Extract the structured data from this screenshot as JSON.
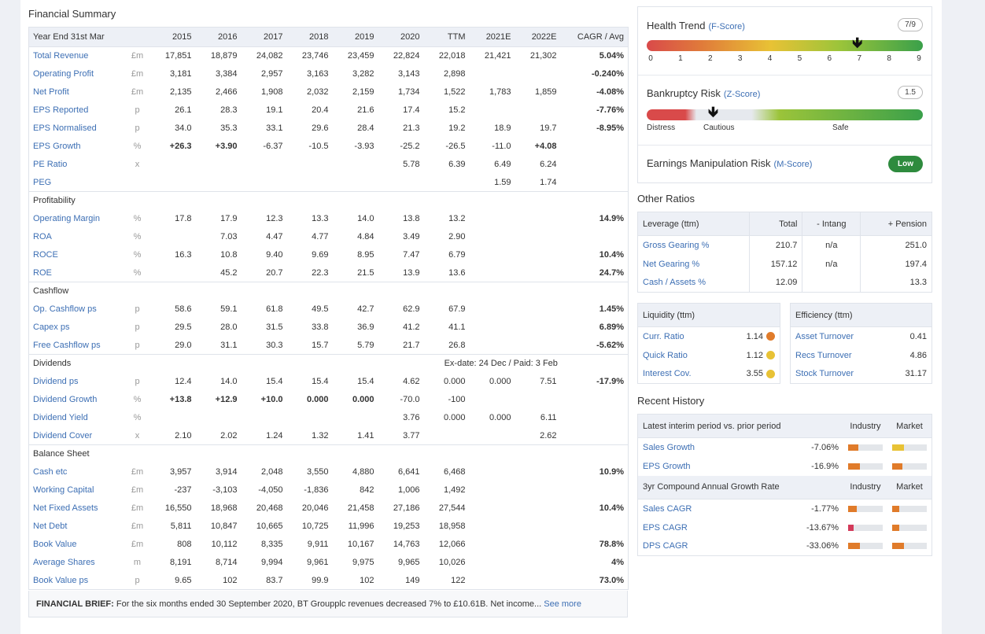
{
  "financial_summary": {
    "title": "Financial Summary",
    "header": [
      "Year End 31st Mar",
      "",
      "2015",
      "2016",
      "2017",
      "2018",
      "2019",
      "2020",
      "TTM",
      "2021E",
      "2022E",
      "CAGR / Avg"
    ],
    "rows": [
      {
        "type": "row",
        "label": "Total Revenue",
        "unit": "£m",
        "vals": [
          "17,851",
          "18,879",
          "24,082",
          "23,746",
          "23,459",
          "22,824",
          "22,018",
          "21,421",
          "21,302"
        ],
        "cagr": "5.04%"
      },
      {
        "type": "row",
        "label": "Operating Profit",
        "unit": "£m",
        "vals": [
          "3,181",
          "3,384",
          "2,957",
          "3,163",
          "3,282",
          "3,143",
          "2,898",
          "",
          ""
        ],
        "cagr": "-0.240%"
      },
      {
        "type": "row",
        "label": "Net Profit",
        "unit": "£m",
        "vals": [
          "2,135",
          "2,466",
          "1,908",
          "2,032",
          "2,159",
          "1,734",
          "1,522",
          "1,783",
          "1,859"
        ],
        "cagr": "-4.08%"
      },
      {
        "type": "row",
        "label": "EPS Reported",
        "unit": "p",
        "vals": [
          "26.1",
          "28.3",
          "19.1",
          "20.4",
          "21.6",
          "17.4",
          "15.2",
          "",
          ""
        ],
        "cagr": "-7.76%"
      },
      {
        "type": "row",
        "label": "EPS Normalised",
        "unit": "p",
        "vals": [
          "34.0",
          "35.3",
          "33.1",
          "29.6",
          "28.4",
          "21.3",
          "19.2",
          "18.9",
          "19.7"
        ],
        "cagr": "-8.95%"
      },
      {
        "type": "row",
        "label": "EPS Growth",
        "unit": "%",
        "vals": [
          "+26.3",
          "+3.90",
          "-6.37",
          "-10.5",
          "-3.93",
          "-25.2",
          "-26.5",
          "-11.0",
          "+4.08"
        ],
        "cagr": ""
      },
      {
        "type": "row",
        "label": "PE Ratio",
        "unit": "x",
        "vals": [
          "",
          "",
          "",
          "",
          "",
          "5.78",
          "6.39",
          "6.49",
          "6.24"
        ],
        "cagr": ""
      },
      {
        "type": "row",
        "label": "PEG",
        "unit": "",
        "vals": [
          "",
          "",
          "",
          "",
          "",
          "",
          "",
          "1.59",
          "1.74"
        ],
        "cagr": ""
      },
      {
        "type": "group",
        "label": "Profitability"
      },
      {
        "type": "row",
        "label": "Operating Margin",
        "unit": "%",
        "vals": [
          "17.8",
          "17.9",
          "12.3",
          "13.3",
          "14.0",
          "13.8",
          "13.2",
          "",
          ""
        ],
        "cagr": "14.9%"
      },
      {
        "type": "row",
        "label": "ROA",
        "unit": "%",
        "vals": [
          "",
          "7.03",
          "4.47",
          "4.77",
          "4.84",
          "3.49",
          "2.90",
          "",
          ""
        ],
        "cagr": ""
      },
      {
        "type": "row",
        "label": "ROCE",
        "unit": "%",
        "vals": [
          "16.3",
          "10.8",
          "9.40",
          "9.69",
          "8.95",
          "7.47",
          "6.79",
          "",
          ""
        ],
        "cagr": "10.4%"
      },
      {
        "type": "row",
        "label": "ROE",
        "unit": "%",
        "vals": [
          "",
          "45.2",
          "20.7",
          "22.3",
          "21.5",
          "13.9",
          "13.6",
          "",
          ""
        ],
        "cagr": "24.7%"
      },
      {
        "type": "group",
        "label": "Cashflow"
      },
      {
        "type": "row",
        "label": "Op. Cashflow ps",
        "unit": "p",
        "vals": [
          "58.6",
          "59.1",
          "61.8",
          "49.5",
          "42.7",
          "62.9",
          "67.9",
          "",
          ""
        ],
        "cagr": "1.45%"
      },
      {
        "type": "row",
        "label": "Capex ps",
        "unit": "p",
        "vals": [
          "29.5",
          "28.0",
          "31.5",
          "33.8",
          "36.9",
          "41.2",
          "41.1",
          "",
          ""
        ],
        "cagr": "6.89%"
      },
      {
        "type": "row",
        "label": "Free Cashflow ps",
        "unit": "p",
        "vals": [
          "29.0",
          "31.1",
          "30.3",
          "15.7",
          "5.79",
          "21.7",
          "26.8",
          "",
          ""
        ],
        "cagr": "-5.62%"
      },
      {
        "type": "group",
        "label": "Dividends",
        "note": "Ex-date: 24 Dec / Paid: 3 Feb"
      },
      {
        "type": "row",
        "label": "Dividend ps",
        "unit": "p",
        "vals": [
          "12.4",
          "14.0",
          "15.4",
          "15.4",
          "15.4",
          "4.62",
          "0.000",
          "0.000",
          "7.51"
        ],
        "cagr": "-17.9%"
      },
      {
        "type": "row",
        "label": "Dividend Growth",
        "unit": "%",
        "vals": [
          "+13.8",
          "+12.9",
          "+10.0",
          "0.000",
          "0.000",
          "-70.0",
          "-100",
          "",
          ""
        ],
        "cagr": ""
      },
      {
        "type": "row",
        "label": "Dividend Yield",
        "unit": "%",
        "vals": [
          "",
          "",
          "",
          "",
          "",
          "3.76",
          "0.000",
          "0.000",
          "6.11"
        ],
        "cagr": ""
      },
      {
        "type": "row",
        "label": "Dividend Cover",
        "unit": "x",
        "vals": [
          "2.10",
          "2.02",
          "1.24",
          "1.32",
          "1.41",
          "3.77",
          "",
          "",
          "2.62"
        ],
        "cagr": ""
      },
      {
        "type": "group",
        "label": "Balance Sheet"
      },
      {
        "type": "row",
        "label": "Cash etc",
        "unit": "£m",
        "vals": [
          "3,957",
          "3,914",
          "2,048",
          "3,550",
          "4,880",
          "6,641",
          "6,468",
          "",
          ""
        ],
        "cagr": "10.9%"
      },
      {
        "type": "row",
        "label": "Working Capital",
        "unit": "£m",
        "vals": [
          "-237",
          "-3,103",
          "-4,050",
          "-1,836",
          "842",
          "1,006",
          "1,492",
          "",
          ""
        ],
        "cagr": ""
      },
      {
        "type": "row",
        "label": "Net Fixed Assets",
        "unit": "£m",
        "vals": [
          "16,550",
          "18,968",
          "20,468",
          "20,046",
          "21,458",
          "27,186",
          "27,544",
          "",
          ""
        ],
        "cagr": "10.4%"
      },
      {
        "type": "row",
        "label": "Net Debt",
        "unit": "£m",
        "vals": [
          "5,811",
          "10,847",
          "10,665",
          "10,725",
          "11,996",
          "19,253",
          "18,958",
          "",
          ""
        ],
        "cagr": ""
      },
      {
        "type": "row",
        "label": "Book Value",
        "unit": "£m",
        "vals": [
          "808",
          "10,112",
          "8,335",
          "9,911",
          "10,167",
          "14,763",
          "12,066",
          "",
          ""
        ],
        "cagr": "78.8%"
      },
      {
        "type": "row",
        "label": "Average Shares",
        "unit": "m",
        "vals": [
          "8,191",
          "8,714",
          "9,994",
          "9,961",
          "9,975",
          "9,965",
          "10,026",
          "",
          ""
        ],
        "cagr": "4%"
      },
      {
        "type": "row",
        "label": "Book Value ps",
        "unit": "p",
        "vals": [
          "9.65",
          "102",
          "83.7",
          "99.9",
          "102",
          "149",
          "122",
          "",
          ""
        ],
        "cagr": "73.0%"
      }
    ],
    "brief_label": "FINANCIAL BRIEF:",
    "brief_text": "For the six months ended 30 September 2020, BT Groupplc revenues decreased 7% to £10.61B. Net income...",
    "see_more": "See more"
  },
  "health_trend": {
    "title": "Health Trend",
    "sub": "(F-Score)",
    "score": "7/9",
    "value": 7,
    "max": 9,
    "ticks": [
      "0",
      "1",
      "2",
      "3",
      "4",
      "5",
      "6",
      "7",
      "8",
      "9"
    ]
  },
  "bankruptcy": {
    "title": "Bankruptcy Risk",
    "sub": "(Z-Score)",
    "score": "1.5",
    "labels": [
      "Distress",
      "Cautious",
      "Safe"
    ]
  },
  "manipulation": {
    "title": "Earnings Manipulation Risk",
    "sub": "(M-Score)",
    "badge": "Low"
  },
  "other_ratios": {
    "title": "Other Ratios",
    "leverage_header": [
      "Leverage (ttm)",
      "Total",
      "- Intang",
      "+ Pension"
    ],
    "leverage_rows": [
      [
        "Gross Gearing %",
        "210.7",
        "n/a",
        "251.0"
      ],
      [
        "Net Gearing %",
        "157.12",
        "n/a",
        "197.4"
      ],
      [
        "Cash / Assets %",
        "12.09",
        "",
        "13.3"
      ]
    ],
    "liquidity_header": "Liquidity (ttm)",
    "liquidity_rows": [
      {
        "label": "Curr. Ratio",
        "value": "1.14",
        "color": "#e07b2a"
      },
      {
        "label": "Quick Ratio",
        "value": "1.12",
        "color": "#e8c235"
      },
      {
        "label": "Interest Cov.",
        "value": "3.55",
        "color": "#e8c235"
      }
    ],
    "efficiency_header": "Efficiency (ttm)",
    "efficiency_rows": [
      [
        "Asset Turnover",
        "0.41"
      ],
      [
        "Recs Turnover",
        "4.86"
      ],
      [
        "Stock Turnover",
        "31.17"
      ]
    ]
  },
  "recent_history": {
    "title": "Recent History",
    "interim_header": [
      "Latest interim period vs. prior period",
      "Industry",
      "Market"
    ],
    "interim_rows": [
      {
        "label": "Sales Growth",
        "value": "-7.06%",
        "ind": 0.3,
        "mkt": 0.35,
        "ind_color": "#e07b2a",
        "mkt_color": "#e8c235"
      },
      {
        "label": "EPS Growth",
        "value": "-16.9%",
        "ind": 0.35,
        "mkt": 0.3,
        "ind_color": "#e07b2a",
        "mkt_color": "#e07b2a"
      }
    ],
    "cagr_header": [
      "3yr Compound Annual Growth Rate",
      "Industry",
      "Market"
    ],
    "cagr_rows": [
      {
        "label": "Sales CAGR",
        "value": "-1.77%",
        "ind": 0.25,
        "mkt": 0.2,
        "ind_color": "#e07b2a",
        "mkt_color": "#e07b2a"
      },
      {
        "label": "EPS CAGR",
        "value": "-13.67%",
        "ind": 0.15,
        "mkt": 0.2,
        "ind_color": "#d33a5a",
        "mkt_color": "#e07b2a"
      },
      {
        "label": "DPS CAGR",
        "value": "-33.06%",
        "ind": 0.35,
        "mkt": 0.35,
        "ind_color": "#e07b2a",
        "mkt_color": "#e07b2a"
      }
    ]
  }
}
